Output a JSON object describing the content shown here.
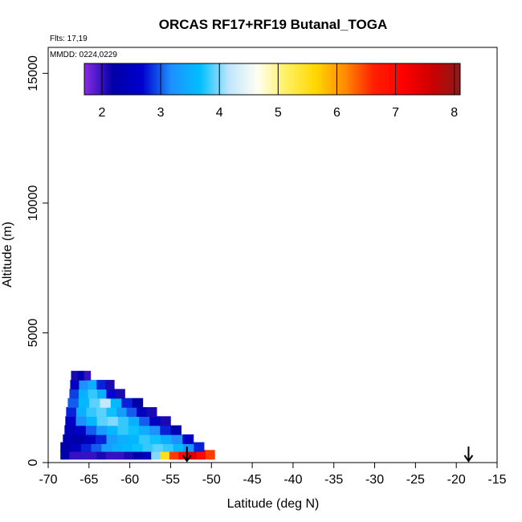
{
  "chart_data": {
    "type": "heatmap",
    "title": "ORCAS RF17+RF19 Butanal_TOGA",
    "xlabel": "Latitude (deg N)",
    "ylabel": "Altitude (m)",
    "xlim": [
      -70,
      -15
    ],
    "ylim": [
      0,
      16000
    ],
    "x_ticks": [
      -70,
      -65,
      -60,
      -55,
      -50,
      -45,
      -40,
      -35,
      -30,
      -25,
      -20,
      -15
    ],
    "y_ticks": [
      0,
      5000,
      10000,
      15000
    ],
    "flights_note": "Flts: 17,19",
    "mmdd_note": "MMDD: 0224,0229",
    "colorbar": {
      "ticks": [
        2,
        3,
        4,
        5,
        6,
        7,
        8
      ],
      "range": [
        1.7,
        8.1
      ],
      "colors": [
        "#8a2be2",
        "#0000a8",
        "#0000cd",
        "#1e90ff",
        "#00bfff",
        "#bfe6ff",
        "#fffff0",
        "#fff060",
        "#ffd700",
        "#ff8c00",
        "#ff2000",
        "#ff0000",
        "#cd0000",
        "#8b1a1a"
      ]
    },
    "arrows_x": [
      -53.0,
      -18.5
    ],
    "bands": [
      {
        "alt": 300,
        "lat_start": -68.5,
        "lat_end": -49.6,
        "values": [
          2.2,
          2.0,
          2.0,
          2.0,
          2.1,
          2.0,
          2.0,
          2.1,
          2.2,
          2.5,
          4.0,
          5.5,
          6.5,
          7.0,
          7.5,
          7.0,
          6.5
        ]
      },
      {
        "alt": 600,
        "lat_start": -68.5,
        "lat_end": -50.9,
        "values": [
          2.2,
          2.5,
          2.8,
          3.0,
          3.3,
          3.5,
          3.6,
          3.7,
          3.8,
          3.9,
          3.8,
          3.6,
          3.2,
          2.8
        ]
      },
      {
        "alt": 900,
        "lat_start": -68.2,
        "lat_end": -52.2,
        "values": [
          2.3,
          2.2,
          2.5,
          2.8,
          3.3,
          3.5,
          3.6,
          3.8,
          3.7,
          3.5,
          3.2,
          2.6
        ]
      },
      {
        "alt": 1250,
        "lat_start": -68.0,
        "lat_end": -53.7,
        "values": [
          2.4,
          2.6,
          3.0,
          3.3,
          3.6,
          3.8,
          3.7,
          3.5,
          3.2,
          2.8,
          2.3
        ]
      },
      {
        "alt": 1600,
        "lat_start": -67.9,
        "lat_end": -55.0,
        "values": [
          2.6,
          3.2,
          3.6,
          3.9,
          4.0,
          3.8,
          3.5,
          3.0,
          2.5,
          2.1
        ]
      },
      {
        "alt": 1950,
        "lat_start": -67.8,
        "lat_end": -56.7,
        "values": [
          2.8,
          3.5,
          3.8,
          3.9,
          3.7,
          3.3,
          3.0,
          2.5,
          2.1
        ]
      },
      {
        "alt": 2300,
        "lat_start": -67.6,
        "lat_end": -58.4,
        "values": [
          3.0,
          3.6,
          3.9,
          4.2,
          3.6,
          2.8,
          2.2
        ]
      },
      {
        "alt": 2650,
        "lat_start": -67.4,
        "lat_end": -60.6,
        "values": [
          2.9,
          3.5,
          3.8,
          3.5,
          2.7,
          2.1
        ]
      },
      {
        "alt": 3000,
        "lat_start": -67.3,
        "lat_end": -61.9,
        "values": [
          2.5,
          3.2,
          3.5,
          2.8,
          2.1
        ]
      },
      {
        "alt": 3350,
        "lat_start": -67.2,
        "lat_end": -64.8,
        "values": [
          2.1,
          2.3,
          2.0
        ]
      }
    ]
  }
}
